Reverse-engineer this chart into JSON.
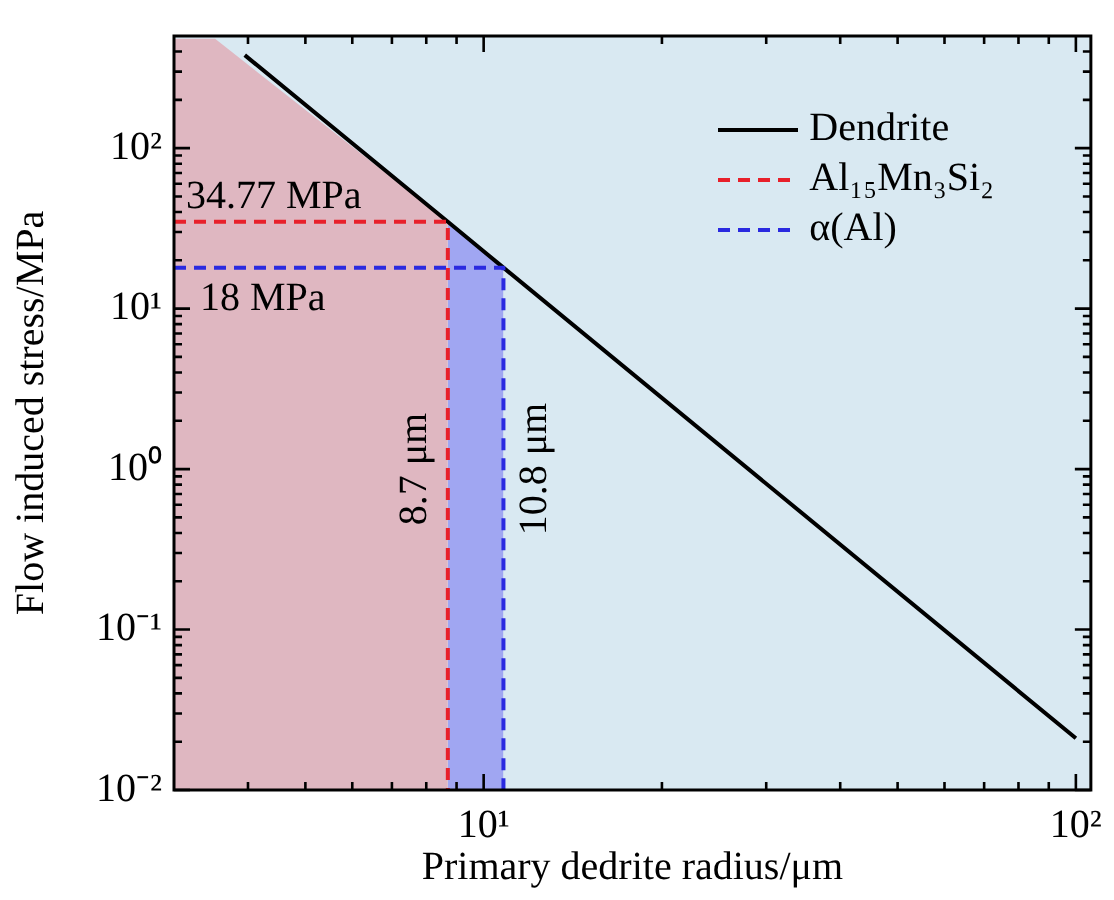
{
  "chart_data": {
    "type": "line",
    "xlabel": "Primary dedrite radius/μm",
    "ylabel": "Flow induced stress/MPa",
    "log": "xy",
    "legend": "top right",
    "line_style": "solid",
    "marker": "none",
    "grid": false,
    "xlim": [
      3,
      106
    ],
    "ylim": [
      0.01,
      500
    ],
    "xticks": [
      {
        "value": 4,
        "label": null
      },
      {
        "value": 5,
        "label": null
      },
      {
        "value": 6,
        "label": null
      },
      {
        "value": 7,
        "label": null
      },
      {
        "value": 8,
        "label": null
      },
      {
        "value": 9,
        "label": null
      },
      {
        "value": 10,
        "label": "10¹"
      },
      {
        "value": 20,
        "label": null
      },
      {
        "value": 30,
        "label": null
      },
      {
        "value": 40,
        "label": null
      },
      {
        "value": 50,
        "label": null
      },
      {
        "value": 60,
        "label": null
      },
      {
        "value": 70,
        "label": null
      },
      {
        "value": 80,
        "label": null
      },
      {
        "value": 90,
        "label": null
      },
      {
        "value": 100,
        "label": "10²"
      }
    ],
    "yticks": [
      {
        "value": 0.01,
        "label": "10⁻²"
      },
      {
        "value": 0.02,
        "label": null
      },
      {
        "value": 0.03,
        "label": null
      },
      {
        "value": 0.04,
        "label": null
      },
      {
        "value": 0.05,
        "label": null
      },
      {
        "value": 0.06,
        "label": null
      },
      {
        "value": 0.07,
        "label": null
      },
      {
        "value": 0.08,
        "label": null
      },
      {
        "value": 0.09,
        "label": null
      },
      {
        "value": 0.1,
        "label": "10⁻¹"
      },
      {
        "value": 0.2,
        "label": null
      },
      {
        "value": 0.3,
        "label": null
      },
      {
        "value": 0.4,
        "label": null
      },
      {
        "value": 0.5,
        "label": null
      },
      {
        "value": 0.6,
        "label": null
      },
      {
        "value": 0.7,
        "label": null
      },
      {
        "value": 0.8,
        "label": null
      },
      {
        "value": 0.9,
        "label": null
      },
      {
        "value": 1,
        "label": "10⁰"
      },
      {
        "value": 2,
        "label": null
      },
      {
        "value": 3,
        "label": null
      },
      {
        "value": 4,
        "label": null
      },
      {
        "value": 5,
        "label": null
      },
      {
        "value": 6,
        "label": null
      },
      {
        "value": 7,
        "label": null
      },
      {
        "value": 8,
        "label": null
      },
      {
        "value": 9,
        "label": null
      },
      {
        "value": 10,
        "label": "10¹"
      },
      {
        "value": 20,
        "label": null
      },
      {
        "value": 30,
        "label": null
      },
      {
        "value": 40,
        "label": null
      },
      {
        "value": 50,
        "label": null
      },
      {
        "value": 60,
        "label": null
      },
      {
        "value": 70,
        "label": null
      },
      {
        "value": 80,
        "label": null
      },
      {
        "value": 90,
        "label": null
      },
      {
        "value": 100,
        "label": "10²"
      },
      {
        "value": 200,
        "label": null
      },
      {
        "value": 300,
        "label": null
      },
      {
        "value": 400,
        "label": null
      }
    ],
    "series": [
      {
        "type": "area",
        "color": "#dfb7c1",
        "x": [
          3,
          3.52,
          8.7
        ],
        "values": [
          480,
          480,
          34.77
        ]
      },
      {
        "type": "area",
        "color": "#a0a6f2",
        "x": [
          8.7,
          10.8
        ],
        "values": [
          34.77,
          18
        ]
      },
      {
        "name": "Dendrite",
        "color": "#000000",
        "x": [
          3.95,
          8.7,
          10.8,
          100
        ],
        "values": [
          380,
          34.77,
          18,
          0.021
        ]
      },
      {
        "name": "Al₁₅Mn₃Si₂",
        "color": "#e8202a",
        "line_style": "dashed",
        "x": [
          3,
          8.7,
          8.7
        ],
        "values": [
          34.77,
          34.77,
          0.01
        ]
      },
      {
        "name": "α(Al)",
        "color": "#2a2ae0",
        "line_style": "dashed",
        "x": [
          3,
          10.8,
          10.8
        ],
        "values": [
          18,
          18,
          0.01
        ]
      }
    ],
    "annotations": [
      {
        "text": "34.77 MPa",
        "x": 3,
        "y": 34.77
      },
      {
        "text": "18 MPa",
        "x": 3,
        "y": 18
      },
      {
        "text": "8.7 μm",
        "x": 8.7,
        "y": 1
      },
      {
        "text": "10.8 μm",
        "x": 10.8,
        "y": 1
      }
    ]
  }
}
